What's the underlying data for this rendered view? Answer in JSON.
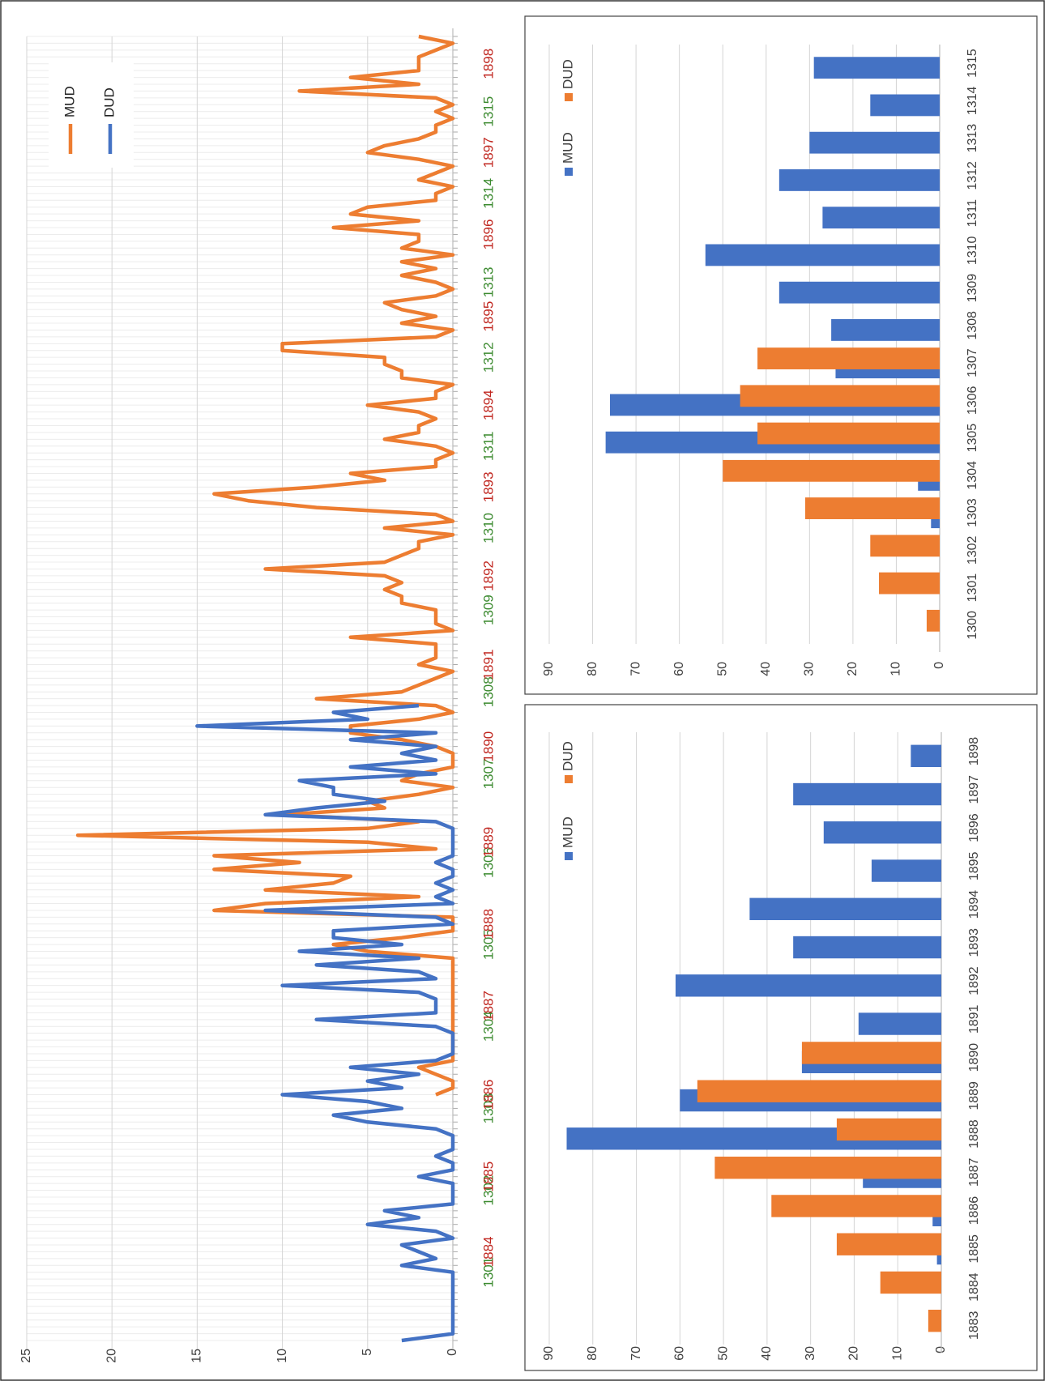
{
  "chart_data": [
    {
      "type": "line",
      "categories": [
        null,
        null,
        null,
        null,
        null,
        null,
        null,
        null,
        null,
        null,
        "1301",
        null,
        null,
        "1884",
        null,
        null,
        null,
        null,
        null,
        null,
        null,
        null,
        "1302",
        null,
        "1885",
        null,
        null,
        null,
        null,
        null,
        null,
        null,
        null,
        null,
        "1303",
        null,
        "1886",
        null,
        null,
        null,
        null,
        null,
        null,
        null,
        null,
        null,
        "1304",
        null,
        null,
        "1887",
        null,
        null,
        null,
        null,
        null,
        null,
        null,
        null,
        "1305",
        null,
        null,
        "1888",
        null,
        null,
        null,
        null,
        null,
        null,
        null,
        null,
        "1306",
        null,
        null,
        "1889",
        null,
        null,
        null,
        null,
        null,
        null,
        null,
        null,
        null,
        "1307",
        null,
        null,
        null,
        "1890",
        null,
        null,
        null,
        null,
        null,
        null,
        null,
        "1308",
        null,
        null,
        null,
        "1891",
        null,
        null,
        null,
        null,
        null,
        null,
        null,
        "1309",
        null,
        null,
        null,
        null,
        "1892",
        null,
        null,
        null,
        null,
        null,
        null,
        "1310",
        null,
        null,
        null,
        null,
        null,
        "1893",
        null,
        null,
        null,
        null,
        null,
        "1311",
        null,
        null,
        null,
        null,
        null,
        "1894",
        null,
        null,
        null,
        null,
        null,
        null,
        "1312",
        null,
        null,
        null,
        null,
        null,
        "1895",
        null,
        null,
        null,
        null,
        "1313",
        null,
        null,
        null,
        null,
        null,
        null,
        "1896",
        null,
        null,
        null,
        null,
        null,
        "1314",
        null,
        null,
        null,
        null,
        null,
        "1897",
        null,
        null,
        null,
        null,
        null,
        "1315",
        null,
        null,
        null,
        null,
        null,
        null,
        "1898",
        null,
        null,
        null,
        null
      ],
      "category_label_colors": [
        "#3b8a2f",
        "#c0261f"
      ],
      "series": [
        {
          "name": "MUD",
          "color": "#ed7d31",
          "values": [
            null,
            null,
            null,
            null,
            null,
            null,
            null,
            null,
            null,
            null,
            null,
            null,
            null,
            null,
            null,
            null,
            null,
            null,
            null,
            null,
            null,
            null,
            null,
            null,
            null,
            null,
            null,
            null,
            null,
            null,
            null,
            null,
            null,
            null,
            null,
            null,
            1,
            0,
            0,
            1,
            2,
            0,
            0,
            0,
            0,
            0,
            0,
            0,
            0,
            0,
            0,
            0,
            0,
            0,
            0,
            0,
            0,
            5,
            7,
            3,
            0,
            0,
            0,
            14,
            11,
            2,
            11,
            7,
            6,
            14,
            9,
            14,
            1,
            5,
            22,
            5,
            2,
            10,
            4,
            5,
            2,
            0,
            3,
            2,
            0,
            0,
            0,
            1,
            3,
            6,
            6,
            2,
            0,
            1,
            8,
            3,
            2,
            1,
            0,
            2,
            1,
            1,
            1,
            6,
            0,
            1,
            1,
            1,
            3,
            3,
            4,
            3,
            4,
            11,
            4,
            3,
            2,
            2,
            0,
            4,
            0,
            1,
            8,
            12,
            14,
            8,
            4,
            6,
            1,
            1,
            0,
            1,
            4,
            2,
            2,
            1,
            2,
            5,
            1,
            1,
            0,
            3,
            3,
            4,
            4,
            10,
            10,
            1,
            0,
            3,
            1,
            3,
            4,
            1,
            0,
            1,
            3,
            1,
            3,
            0,
            3,
            2,
            2,
            7,
            2,
            6,
            5,
            1,
            1,
            0,
            2,
            1,
            0,
            2,
            5,
            4,
            2,
            1,
            1,
            0,
            1,
            0,
            1,
            9,
            2,
            6,
            2,
            2,
            2,
            1,
            0,
            2
          ]
        },
        {
          "name": "DUD",
          "color": "#4472c4",
          "values": [
            3,
            0,
            0,
            0,
            0,
            0,
            0,
            0,
            0,
            0,
            0,
            3,
            1,
            2,
            3,
            0,
            1,
            5,
            2,
            4,
            0,
            0,
            0,
            0,
            2,
            0,
            0,
            1,
            0,
            0,
            0,
            1,
            5,
            7,
            3,
            5,
            10,
            3,
            5,
            2,
            6,
            1,
            0,
            0,
            0,
            0,
            1,
            8,
            1,
            1,
            1,
            2,
            10,
            1,
            2,
            8,
            2,
            9,
            3,
            7,
            7,
            0,
            1,
            11,
            0,
            1,
            0,
            1,
            0,
            0,
            1,
            0,
            0,
            0,
            0,
            0,
            1,
            11,
            8,
            4,
            7,
            7,
            9,
            1,
            6,
            1,
            3,
            1,
            6,
            1,
            15,
            5,
            7,
            2,
            null,
            null,
            null,
            null,
            null,
            null,
            null,
            null,
            null,
            null,
            null,
            null,
            null,
            null,
            null,
            null,
            null,
            null,
            null,
            null,
            null,
            null,
            null,
            null,
            null,
            null,
            null,
            null,
            null,
            null,
            null,
            null,
            null,
            null,
            null,
            null,
            null,
            null,
            null,
            null,
            null,
            null,
            null,
            null,
            null,
            null,
            null,
            null,
            null,
            null,
            null,
            null,
            null,
            null,
            null,
            null,
            null,
            null,
            null,
            null,
            null,
            null,
            null,
            null,
            null,
            null,
            null,
            null,
            null,
            null,
            null,
            null,
            null,
            null,
            null,
            null,
            null,
            null,
            null,
            null,
            null,
            null,
            null,
            null,
            null,
            null,
            null,
            null,
            null,
            null,
            null,
            null,
            null,
            null,
            null,
            null,
            null,
            null
          ]
        }
      ],
      "ylim": [
        0,
        25
      ],
      "yticks": [
        0,
        5,
        10,
        15,
        20,
        25
      ],
      "grid": true,
      "legend": "upper right"
    },
    {
      "type": "bar",
      "categories": [
        "1300",
        "1301",
        "1302",
        "1303",
        "1304",
        "1305",
        "1306",
        "1307",
        "1308",
        "1309",
        "1310",
        "1311",
        "1312",
        "1313",
        "1314",
        "1315"
      ],
      "series": [
        {
          "name": "MUD",
          "color": "#4472c4",
          "values": [
            0,
            0,
            0,
            2,
            5,
            77,
            76,
            24,
            25,
            37,
            54,
            27,
            37,
            30,
            16,
            29
          ]
        },
        {
          "name": "DUD",
          "color": "#ed7d31",
          "values": [
            3,
            14,
            16,
            31,
            50,
            42,
            46,
            42,
            0,
            0,
            0,
            0,
            0,
            0,
            0,
            0
          ]
        }
      ],
      "ylim": [
        0,
        90
      ],
      "yticks": [
        0,
        10,
        20,
        30,
        40,
        50,
        60,
        70,
        80,
        90
      ],
      "grid": true,
      "legend": "upper left"
    },
    {
      "type": "bar",
      "categories": [
        "1883",
        "1884",
        "1885",
        "1886",
        "1887",
        "1888",
        "1889",
        "1890",
        "1891",
        "1892",
        "1893",
        "1894",
        "1895",
        "1896",
        "1897",
        "1898"
      ],
      "series": [
        {
          "name": "MUD",
          "color": "#4472c4",
          "values": [
            0,
            0,
            1,
            2,
            18,
            86,
            60,
            32,
            19,
            61,
            34,
            44,
            16,
            27,
            34,
            7
          ]
        },
        {
          "name": "DUD",
          "color": "#ed7d31",
          "values": [
            3,
            14,
            24,
            39,
            52,
            24,
            56,
            32,
            0,
            0,
            0,
            0,
            0,
            0,
            0,
            0
          ]
        }
      ],
      "ylim": [
        0,
        90
      ],
      "yticks": [
        0,
        10,
        20,
        30,
        40,
        50,
        60,
        70,
        80,
        90
      ],
      "grid": true,
      "legend": "upper left"
    }
  ]
}
